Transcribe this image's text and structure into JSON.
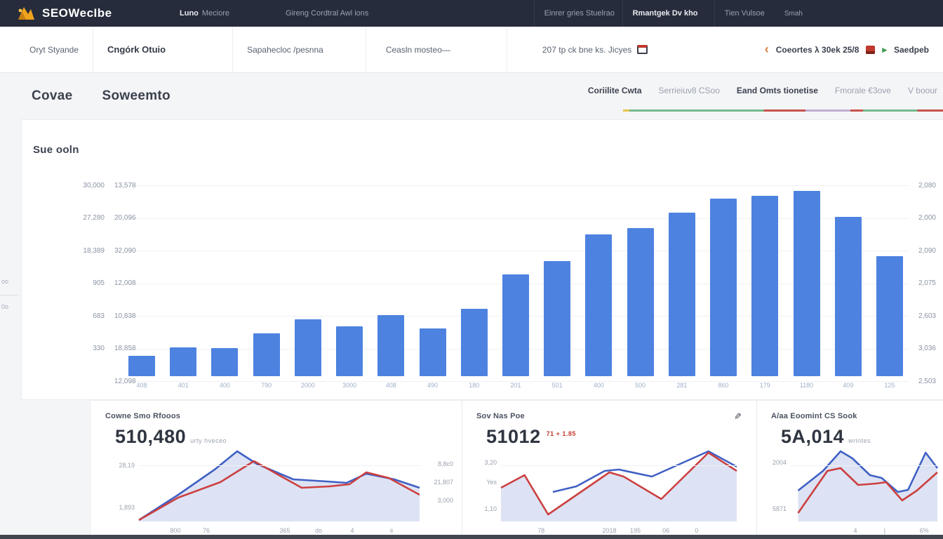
{
  "topnav": {
    "logo_text": "SEOWecIbe",
    "item1_a": "Luno",
    "item1_b": "Meciore",
    "item2": "Gireng Cordtral Awl ions",
    "item3": "Einrer gries Stuelrao",
    "item4": "Rmantgek Dv kho",
    "item5": "Tien Vulsoe",
    "item6": "Smah"
  },
  "toolbar": {
    "item1": "Oryt Styande",
    "item2": "Cngórk Otuio",
    "item3": "Sapahecloc /pesnna",
    "item4": "Ceasln mosteo—",
    "item5": "207 tp ck bne ks. Jicyes",
    "back_chevron": "‹",
    "period_label": "Coeortes λ 30ek 25/8",
    "compare_caret": "▸",
    "compare_label": "Saedpeb"
  },
  "pageheader": {
    "title_left": "Covae",
    "title_right": "Soweemto",
    "tabs": [
      {
        "label": "Coriilite Cwta",
        "active": true
      },
      {
        "label": "Serrieiuv8 CSoo",
        "active": false
      },
      {
        "label": "Eand Omts tionetise",
        "active": true
      },
      {
        "label": "Fmorale €3ove",
        "active": false
      },
      {
        "label": "V boour",
        "active": false
      }
    ]
  },
  "edge_notes": {
    "n1": "oo",
    "n2": "0o"
  },
  "chart_data": [
    {
      "type": "bar",
      "title": "Sue ooln",
      "categories": [
        "408",
        "401",
        "400",
        "790",
        "2000",
        "3000",
        "408",
        "490",
        "180",
        "201",
        "501",
        "400",
        "500",
        "281",
        "860",
        "179",
        "1180",
        "409",
        "125"
      ],
      "values": [
        28,
        39,
        38,
        58,
        77,
        68,
        83,
        65,
        92,
        139,
        157,
        193,
        202,
        223,
        242,
        246,
        252,
        217,
        163
      ],
      "bar_color": "#4d82e0",
      "ylim": [
        0,
        260
      ],
      "grid": true,
      "y_axis_left_col1": [
        "30,000",
        "27,280",
        "18,389",
        "905",
        "683",
        "330"
      ],
      "y_axis_left_col2": [
        "13,578",
        "20,096",
        "32,090",
        "12,008",
        "10,838",
        "18,858",
        "12,098"
      ],
      "y_axis_right": [
        "2,080",
        "2,000",
        "2,090",
        "2,075",
        "2,603",
        "3,036",
        "2,503"
      ]
    },
    {
      "type": "line",
      "title": "Cowne Smo Rfooos",
      "big_value": "510,480",
      "big_suffix": "urty hveceo",
      "y_labels_left": [
        {
          "t": "28,19",
          "y": 20
        },
        {
          "t": "1,893",
          "y": 80
        }
      ],
      "y_labels_right": [
        {
          "t": "8,8c0",
          "y": 18
        },
        {
          "t": "21,807",
          "y": 44
        },
        {
          "t": "3,000",
          "y": 70
        }
      ],
      "x_labels": [
        {
          "t": "800",
          "x": 13
        },
        {
          "t": "76",
          "x": 24
        },
        {
          "t": "365",
          "x": 52
        },
        {
          "t": "do",
          "x": 64
        },
        {
          "t": "4",
          "x": 76
        },
        {
          "t": "ii",
          "x": 90
        }
      ],
      "fill_series": 0,
      "fill_color": "#dde3f4",
      "series": [
        {
          "name": "blue",
          "color": "#4060c4",
          "points": [
            [
              0,
              98
            ],
            [
              14,
              62
            ],
            [
              27,
              26
            ],
            [
              35,
              0
            ],
            [
              42,
              18
            ],
            [
              55,
              40
            ],
            [
              67,
              43
            ],
            [
              74,
              45
            ],
            [
              81,
              32
            ],
            [
              91,
              40
            ],
            [
              100,
              52
            ]
          ]
        },
        {
          "name": "red",
          "color": "#cc4040",
          "points": [
            [
              0,
              98
            ],
            [
              14,
              66
            ],
            [
              29,
              44
            ],
            [
              41,
              14
            ],
            [
              49,
              32
            ],
            [
              58,
              52
            ],
            [
              68,
              50
            ],
            [
              75,
              47
            ],
            [
              81,
              30
            ],
            [
              89,
              38
            ],
            [
              100,
              62
            ]
          ]
        }
      ]
    },
    {
      "type": "line",
      "title": "Sov Nas Poe",
      "big_value": "51012",
      "badge": "71 + 1.85",
      "y_labels_left": [
        {
          "t": "3,20",
          "y": 16
        },
        {
          "t": "Yes",
          "y": 44
        },
        {
          "t": "1,10",
          "y": 82
        }
      ],
      "y_labels_right": [],
      "x_labels": [
        {
          "t": "78",
          "x": 17
        },
        {
          "t": "2018",
          "x": 46
        },
        {
          "t": "195",
          "x": 57
        },
        {
          "t": "06",
          "x": 70
        },
        {
          "t": "0",
          "x": 83
        }
      ],
      "fill_series": 1,
      "fill_color": "#dde3f4",
      "series": [
        {
          "name": "blue",
          "color": "#4060c4",
          "points": [
            [
              22,
              58
            ],
            [
              32,
              50
            ],
            [
              44,
              28
            ],
            [
              50,
              26
            ],
            [
              64,
              36
            ],
            [
              88,
              0
            ],
            [
              100,
              22
            ]
          ]
        },
        {
          "name": "red",
          "color": "#cc4040",
          "points": [
            [
              0,
              52
            ],
            [
              10,
              34
            ],
            [
              20,
              90
            ],
            [
              46,
              30
            ],
            [
              52,
              36
            ],
            [
              68,
              68
            ],
            [
              88,
              2
            ],
            [
              100,
              28
            ]
          ]
        }
      ]
    },
    {
      "type": "line",
      "title": "A/aa Eoomint CS Sook",
      "big_value": "5A,014",
      "big_suffix": "wrintes",
      "y_labels_left": [
        {
          "t": "2004",
          "y": 16
        },
        {
          "t": "5871",
          "y": 82
        }
      ],
      "y_labels_right": [],
      "x_labels": [
        {
          "t": "4",
          "x": 44
        },
        {
          "t": "|",
          "x": 64
        },
        {
          "t": "6%",
          "x": 91
        }
      ],
      "fill_series": 0,
      "fill_color": "#dde3f4",
      "series": [
        {
          "name": "blue",
          "color": "#4060c4",
          "points": [
            [
              5,
              56
            ],
            [
              22,
              28
            ],
            [
              34,
              0
            ],
            [
              42,
              10
            ],
            [
              54,
              34
            ],
            [
              62,
              38
            ],
            [
              73,
              58
            ],
            [
              80,
              55
            ],
            [
              92,
              2
            ],
            [
              100,
              24
            ]
          ]
        },
        {
          "name": "red",
          "color": "#cc4040",
          "points": [
            [
              5,
              88
            ],
            [
              25,
              28
            ],
            [
              34,
              24
            ],
            [
              46,
              48
            ],
            [
              58,
              46
            ],
            [
              65,
              44
            ],
            [
              76,
              70
            ],
            [
              86,
              56
            ],
            [
              100,
              30
            ]
          ]
        }
      ]
    }
  ]
}
